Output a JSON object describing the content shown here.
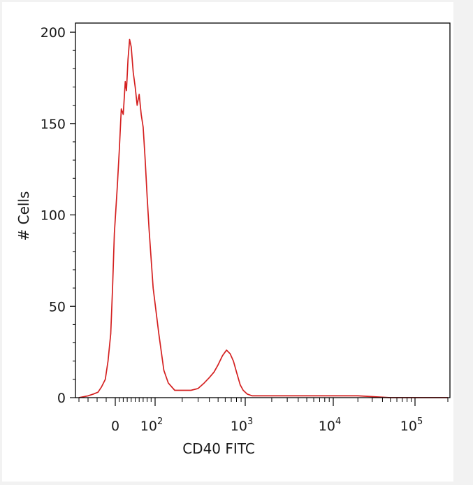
{
  "chart_data": {
    "type": "line",
    "title": "",
    "xlabel": "CD40 FITC",
    "ylabel": "# Cells",
    "x_scale": "biexponential (logicle)",
    "ylim": [
      0,
      205
    ],
    "y_ticks": [
      0,
      50,
      100,
      150,
      200
    ],
    "x_ticks": [
      {
        "value": 0,
        "label": "0",
        "exp": ""
      },
      {
        "value": 100,
        "label": "10",
        "exp": "2"
      },
      {
        "value": 1000,
        "label": "10",
        "exp": "3"
      },
      {
        "value": 10000,
        "label": "10",
        "exp": "4"
      },
      {
        "value": 100000,
        "label": "10",
        "exp": "5"
      }
    ],
    "grid": false,
    "legend": "none",
    "series": [
      {
        "color": "#d42020",
        "x": [
          -200,
          -150,
          -120,
          -95,
          -75,
          -55,
          -40,
          -25,
          -15,
          -5,
          5,
          10,
          15,
          20,
          25,
          28,
          32,
          36,
          40,
          45,
          50,
          55,
          60,
          65,
          70,
          75,
          80,
          85,
          95,
          110,
          125,
          140,
          165,
          200,
          250,
          300,
          350,
          400,
          450,
          500,
          560,
          620,
          680,
          740,
          800,
          880,
          950,
          1050,
          1200,
          1500,
          2500,
          5000,
          10000,
          20000,
          50000,
          100000,
          200000
        ],
        "y": [
          0,
          1,
          2,
          3,
          6,
          10,
          20,
          35,
          60,
          90,
          115,
          135,
          158,
          155,
          173,
          168,
          185,
          196,
          192,
          178,
          170,
          160,
          166,
          155,
          148,
          130,
          110,
          92,
          60,
          35,
          15,
          8,
          4,
          4,
          4,
          5,
          8,
          11,
          14,
          18,
          23,
          26,
          24,
          20,
          14,
          7,
          4,
          2,
          1,
          1,
          1,
          1,
          1,
          1,
          0,
          0,
          0
        ]
      }
    ]
  }
}
